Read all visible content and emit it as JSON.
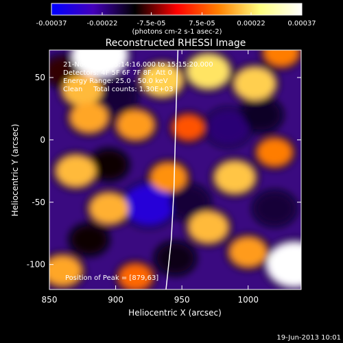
{
  "chart_data": {
    "type": "heatmap",
    "title": "Reconstructed RHESSI Image",
    "xlabel": "Heliocentric X (arcsec)",
    "ylabel": "Heliocentric Y (arcsec)",
    "xlim": [
      850,
      1040
    ],
    "ylim": [
      -120,
      72
    ],
    "x_ticks": [
      850,
      900,
      950,
      1000
    ],
    "y_ticks": [
      50,
      0,
      -50,
      -100
    ],
    "x_tick_labels": [
      "850",
      "900",
      "950",
      "1000"
    ],
    "y_tick_labels": [
      "50",
      "0",
      "-50",
      "-100"
    ],
    "colorbar": {
      "range": [
        -0.00037,
        0.00037
      ],
      "tick_values": [
        -0.00037,
        -0.00022,
        -7.5e-05,
        7.5e-05,
        0.00022,
        0.00037
      ],
      "tick_labels": [
        "-0.00037",
        "-0.00022",
        "-7.5e-05",
        "7.5e-05",
        "0.00022",
        "0.00037"
      ],
      "units_label": "(photons cm-2 s-1 asec-2)",
      "colors": [
        "#0000ff",
        "#4400bb",
        "#000000",
        "#ff0000",
        "#ff8000",
        "#ffff80",
        "#ffffff"
      ]
    },
    "info_lines": [
      "21-Nov-2004 15:14:16.000 to 15:15:20.000",
      "Detectors: 4F 5F 6F 7F 8F, Att 0",
      "Energy Range: 25.0 - 50.0 keV",
      "Clean     Total counts: 1.30E+03"
    ],
    "peak_label": "Position of Peak = [879,63]",
    "limb_points": [
      [
        947,
        72
      ],
      [
        946,
        40
      ],
      [
        945,
        0
      ],
      [
        944,
        -40
      ],
      [
        942,
        -80
      ],
      [
        938,
        -120
      ]
    ],
    "hot_blobs": [
      {
        "x": 888,
        "y": 68,
        "value": 0.00037
      },
      {
        "x": 935,
        "y": 48,
        "value": 0.0002
      },
      {
        "x": 875,
        "y": 40,
        "value": 0.00018
      },
      {
        "x": 970,
        "y": 55,
        "value": 0.00022
      },
      {
        "x": 1005,
        "y": 45,
        "value": 0.0002
      },
      {
        "x": 880,
        "y": 18,
        "value": 0.00016
      },
      {
        "x": 915,
        "y": 12,
        "value": 0.00015
      },
      {
        "x": 870,
        "y": -25,
        "value": 0.00018
      },
      {
        "x": 940,
        "y": -30,
        "value": 0.00014
      },
      {
        "x": 990,
        "y": -30,
        "value": 0.00019
      },
      {
        "x": 1020,
        "y": -10,
        "value": 0.00012
      },
      {
        "x": 895,
        "y": -55,
        "value": 0.00017
      },
      {
        "x": 970,
        "y": -70,
        "value": 0.00018
      },
      {
        "x": 1000,
        "y": -90,
        "value": 0.00015
      },
      {
        "x": 1035,
        "y": -100,
        "value": 0.00037
      },
      {
        "x": 860,
        "y": -105,
        "value": 0.00016
      },
      {
        "x": 915,
        "y": -110,
        "value": 0.0001
      },
      {
        "x": 1025,
        "y": 70,
        "value": 0.00012
      },
      {
        "x": 955,
        "y": 10,
        "value": 8e-05
      }
    ],
    "cold_blobs": [
      {
        "x": 925,
        "y": -52,
        "value": -0.0003
      },
      {
        "x": 900,
        "y": 35,
        "value": -0.00016
      },
      {
        "x": 985,
        "y": 10,
        "value": -0.0002
      },
      {
        "x": 1010,
        "y": 20,
        "value": -0.00015
      },
      {
        "x": 955,
        "y": -50,
        "value": -0.00016
      },
      {
        "x": 880,
        "y": -80,
        "value": -0.00012
      },
      {
        "x": 1020,
        "y": -55,
        "value": -0.00016
      },
      {
        "x": 860,
        "y": 55,
        "value": -0.0001
      },
      {
        "x": 945,
        "y": -95,
        "value": -0.00014
      },
      {
        "x": 895,
        "y": -20,
        "value": -0.00012
      }
    ]
  },
  "footer": {
    "timestamp": "19-Jun-2013 10:01"
  }
}
